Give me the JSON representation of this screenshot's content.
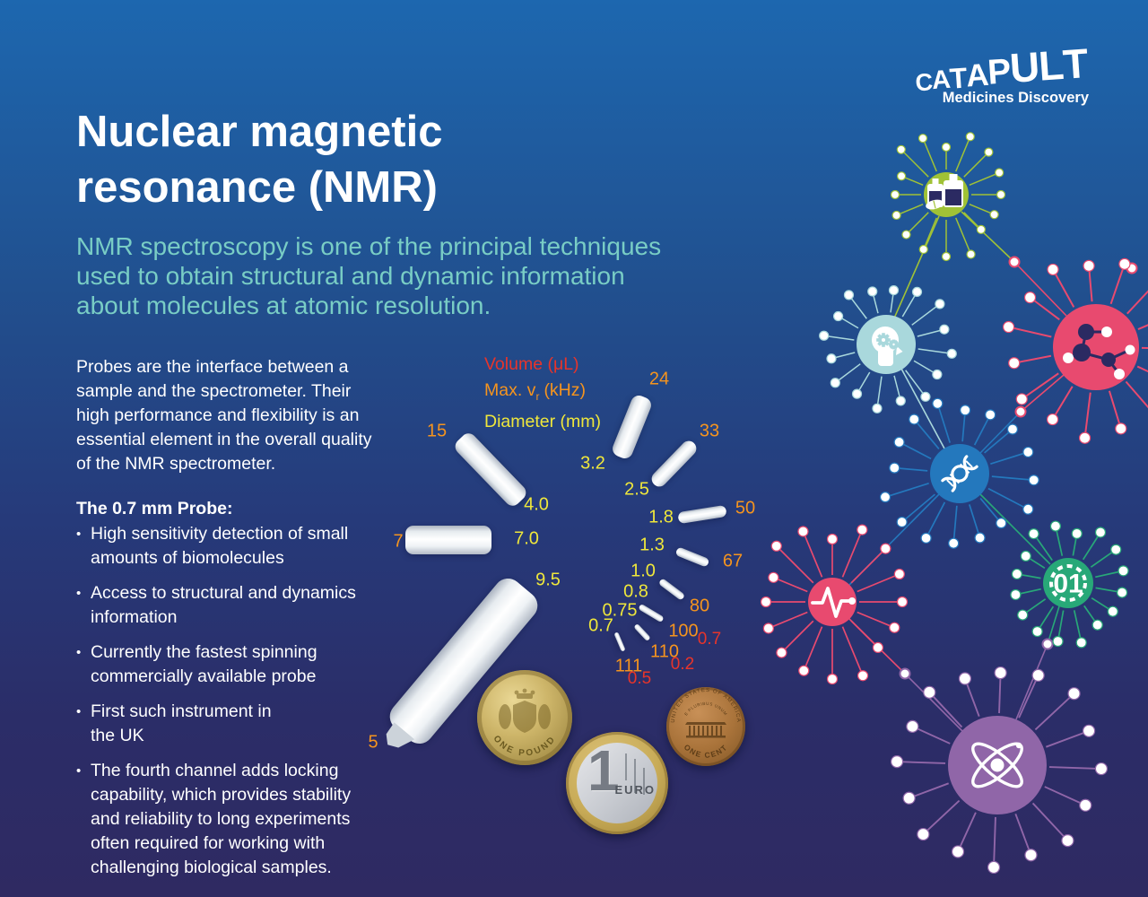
{
  "logo": {
    "brand_letters": [
      "C",
      "A",
      "T",
      "A",
      "P",
      "U",
      "L",
      "T"
    ],
    "tagline": "Medicines Discovery"
  },
  "title": "Nuclear magnetic\nresonance (NMR)",
  "intro": "NMR spectroscopy is one of the principal techniques\nused to obtain structural and dynamic information\nabout molecules at atomic resolution.",
  "probes_paragraph": "Probes are the interface between a\nsample and the spectrometer. Their\nhigh performance and flexibility is an\nessential element in the overall quality\nof the NMR spectrometer.",
  "probe_section": {
    "heading": "The 0.7 mm Probe:",
    "bullets": [
      "High sensitivity detection of small\namounts of biomolecules",
      "Access to structural and dynamics\ninformation",
      "Currently the fastest spinning\ncommercially available probe",
      "First such instrument in\nthe UK",
      "The fourth channel adds locking\ncapability, which provides stability\nand reliability to long experiments\noften required for working with\nchallenging biological samples."
    ]
  },
  "diagram": {
    "legend": {
      "volume_label": "Volume (μL)",
      "volume_color": "#e8342a",
      "speed_prefix": "Max. v",
      "speed_sub": "r",
      "speed_suffix": "(kHz)",
      "speed_color": "#f5941e",
      "diameter_label": "Diameter (mm)",
      "diameter_color": "#efe73b"
    },
    "probes": [
      {
        "diameter_mm": "9.5",
        "max_speed_khz": "5"
      },
      {
        "diameter_mm": "7.0",
        "max_speed_khz": "7"
      },
      {
        "diameter_mm": "4.0",
        "max_speed_khz": "15"
      },
      {
        "diameter_mm": "3.2",
        "max_speed_khz": "24"
      },
      {
        "diameter_mm": "2.5",
        "max_speed_khz": "33"
      },
      {
        "diameter_mm": "1.8",
        "max_speed_khz": "50"
      },
      {
        "diameter_mm": "1.3",
        "max_speed_khz": "67"
      },
      {
        "diameter_mm": "1.0",
        "max_speed_khz": "80"
      },
      {
        "diameter_mm": "0.8",
        "max_speed_khz": "100",
        "volume_ul": "0.7"
      },
      {
        "diameter_mm": "0.75",
        "max_speed_khz": "110",
        "volume_ul": "0.2"
      },
      {
        "diameter_mm": "0.7",
        "max_speed_khz": "111",
        "volume_ul": "0.5"
      }
    ]
  },
  "coins": {
    "pound": {
      "bottom_text": "ONE POUND"
    },
    "euro": {
      "numeral": "1",
      "label": "EURO"
    },
    "cent": {
      "top_text": "UNITED STATES OF AMERICA",
      "mid_text": "E PLURIBUS UNUM",
      "bottom_text": "ONE CENT"
    }
  },
  "network": {
    "hubs": [
      {
        "id": "pills",
        "icon": "medicine-bottles-icon",
        "color": "#a0c236"
      },
      {
        "id": "mind",
        "icon": "head-gears-icon",
        "color": "#a9d8dc"
      },
      {
        "id": "molecule",
        "icon": "molecule-icon",
        "color": "#e84a6f"
      },
      {
        "id": "dna",
        "icon": "dna-icon",
        "color": "#2478bd"
      },
      {
        "id": "pulse",
        "icon": "pulse-icon",
        "color": "#e84a6f"
      },
      {
        "id": "informatics",
        "icon": "binary-gear-icon",
        "color": "#28a878",
        "label": "01"
      },
      {
        "id": "atom",
        "icon": "atom-icon",
        "color": "#9066a8"
      }
    ],
    "node_dark_color": "#2b2a62"
  },
  "colors": {
    "background_top": "#1d67af",
    "background_bottom": "#2f2a62",
    "title_text": "#ffffff",
    "intro_text": "#79cdc5"
  }
}
